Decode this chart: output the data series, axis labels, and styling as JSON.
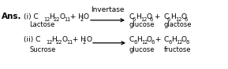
{
  "background_color": "#ffffff",
  "ans_label": "Ans.",
  "enzyme_label": "Invertase",
  "line1_label_left": "Lactose",
  "line1_label_right1": "glucose",
  "line1_label_right2": "glactose",
  "line2_label_left": "Sucrose",
  "line2_label_right1": "glucose",
  "line2_label_right2": "fructose",
  "fs": 6.5,
  "fs_sub": 4.8,
  "fs_ans": 7.5,
  "fs_label": 6.0
}
